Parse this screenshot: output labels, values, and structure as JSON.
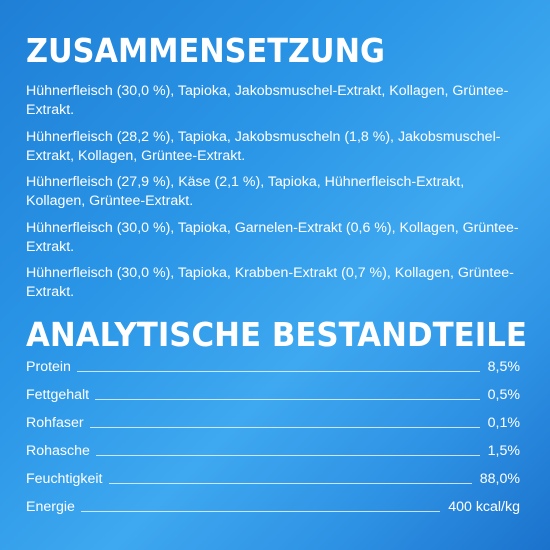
{
  "composition": {
    "heading": "ZUSAMMENSETZUNG",
    "items": [
      "Hühnerfleisch (30,0 %), Tapioka, Jakobsmuschel-Extrakt, Kollagen, Grüntee-Extrakt.",
      "Hühnerfleisch (28,2 %), Tapioka, Jakobsmuscheln (1,8 %), Jakobsmuschel-Extrakt, Kollagen, Grüntee-Extrakt.",
      "Hühnerfleisch (27,9 %), Käse (2,1 %), Tapioka, Hühnerfleisch-Extrakt, Kollagen, Grüntee-Extrakt.",
      "Hühnerfleisch (30,0 %), Tapioka, Garnelen-Extrakt (0,6 %), Kollagen, Grüntee-Extrakt.",
      "Hühnerfleisch (30,0 %), Tapioka, Krabben-Extrakt (0,7 %), Kollagen, Grüntee-Extrakt."
    ]
  },
  "analysis": {
    "heading": "ANALYTISCHE BESTANDTEILE",
    "rows": [
      {
        "name": "Protein",
        "value": "8,5%"
      },
      {
        "name": "Fettgehalt",
        "value": "0,5%"
      },
      {
        "name": "Rohfaser",
        "value": "0,1%"
      },
      {
        "name": "Rohasche",
        "value": "1,5%"
      },
      {
        "name": "Feuchtigkeit",
        "value": "88,0%"
      },
      {
        "name": "Energie",
        "value": "400 kcal/kg"
      }
    ]
  },
  "colors": {
    "background_light": "#3ea8f0",
    "background_dark": "#1b72cc",
    "text": "#ffffff"
  }
}
